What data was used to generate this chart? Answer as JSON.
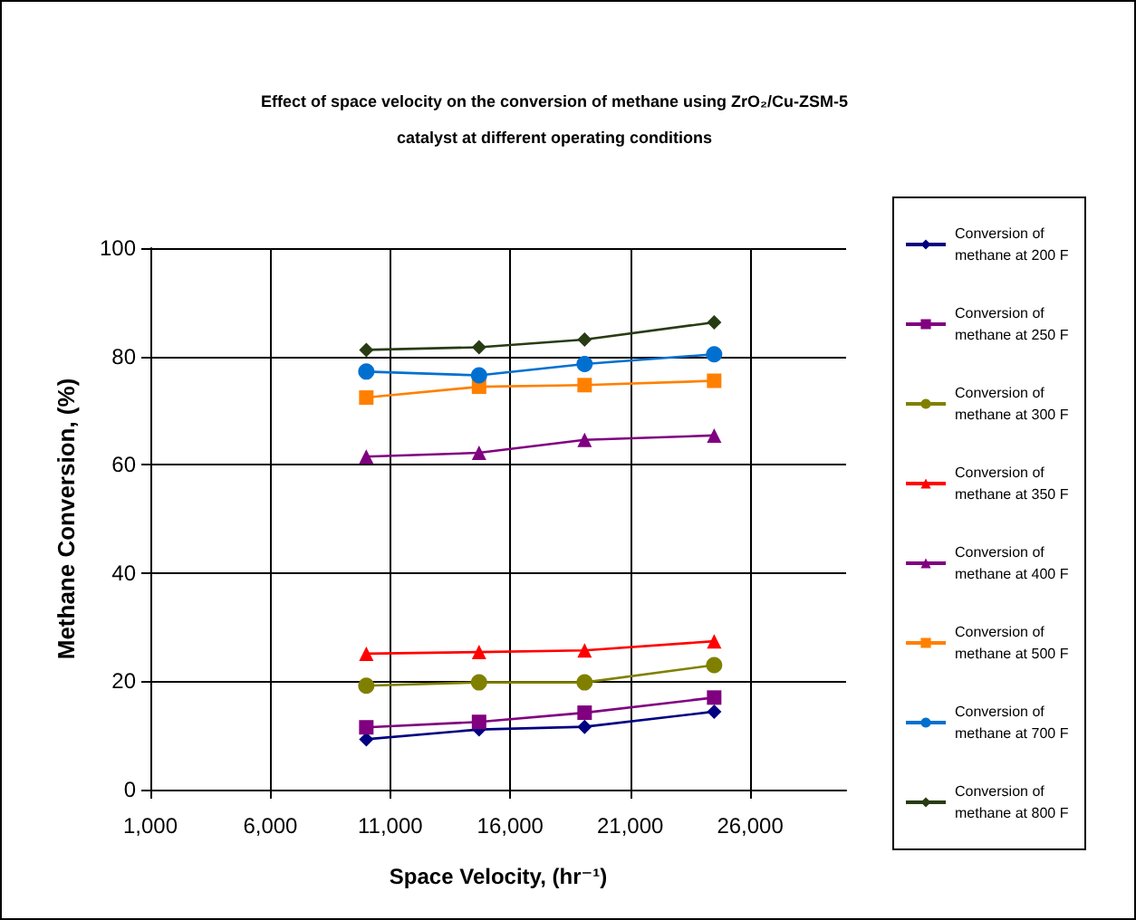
{
  "chart_data": {
    "type": "line",
    "title": "Effect of space velocity on the conversion of methane using ZrO₂/Cu-ZSM-5\ncatalyst at different operating conditions",
    "xlabel": "Space Velocity, (hr⁻¹)",
    "ylabel": "Methane Conversion, (%)",
    "x": [
      10000,
      14700,
      19100,
      24500
    ],
    "series": [
      {
        "name": "Conversion of methane at 200 F",
        "color": "#000080",
        "marker": "diamond",
        "values": [
          9.3,
          11.1,
          11.6,
          14.4
        ]
      },
      {
        "name": "Conversion of methane at 250 F",
        "color": "#800080",
        "marker": "square",
        "values": [
          11.5,
          12.5,
          14.2,
          17.0
        ]
      },
      {
        "name": "Conversion of methane at 300 F",
        "color": "#808000",
        "marker": "circle",
        "values": [
          19.2,
          19.8,
          19.8,
          23.0
        ]
      },
      {
        "name": "Conversion of methane at 350 F",
        "color": "#ff0000",
        "marker": "triangle",
        "values": [
          25.1,
          25.4,
          25.7,
          27.4
        ]
      },
      {
        "name": "Conversion of methane at 400 F",
        "color": "#800080",
        "marker": "triangle",
        "values": [
          61.5,
          62.2,
          64.6,
          65.4
        ]
      },
      {
        "name": "Conversion of methane at 500 F",
        "color": "#ff8000",
        "marker": "square",
        "values": [
          72.4,
          74.4,
          74.7,
          75.5
        ]
      },
      {
        "name": "Conversion of methane at 700 F",
        "color": "#0070d0",
        "marker": "circle",
        "values": [
          77.2,
          76.5,
          78.6,
          80.4
        ]
      },
      {
        "name": "Conversion of methane at 800 F",
        "color": "#283c14",
        "marker": "diamond",
        "values": [
          81.2,
          81.7,
          83.1,
          86.3
        ]
      }
    ],
    "xlim": [
      1000,
      30000
    ],
    "xticks": [
      {
        "value": 1000,
        "label": "1,000"
      },
      {
        "value": 6000,
        "label": "6,000"
      },
      {
        "value": 11000,
        "label": "11,000"
      },
      {
        "value": 16000,
        "label": "16,000"
      },
      {
        "value": 21000,
        "label": "21,000"
      },
      {
        "value": 26000,
        "label": "26,000"
      }
    ],
    "ylim": [
      0,
      100
    ],
    "yticks": [
      0,
      20,
      40,
      60,
      80,
      100
    ],
    "grid": true,
    "legend": "right",
    "line_style": "solid"
  }
}
